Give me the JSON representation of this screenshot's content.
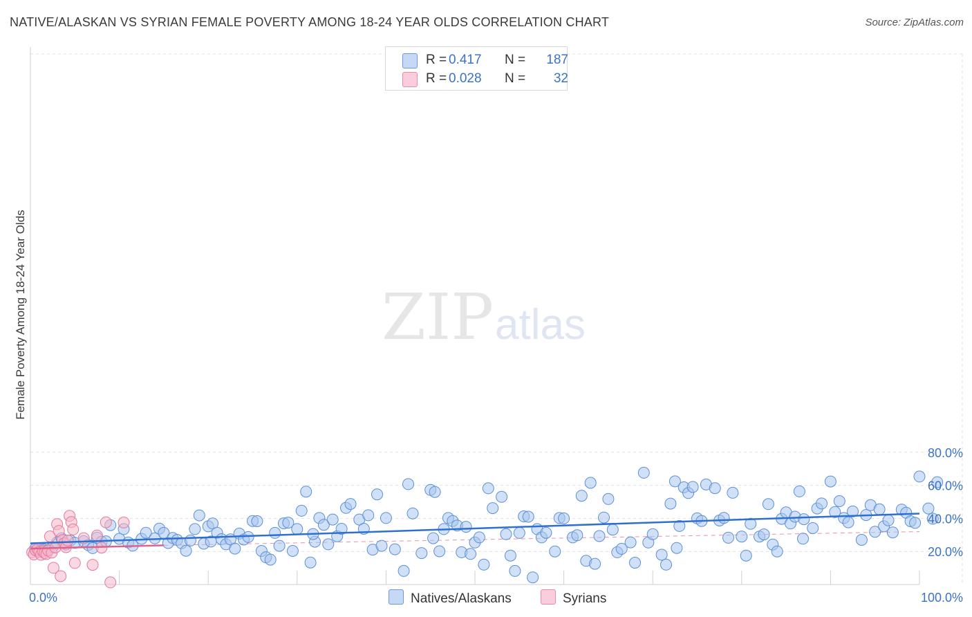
{
  "title": "NATIVE/ALASKAN VS SYRIAN FEMALE POVERTY AMONG 18-24 YEAR OLDS CORRELATION CHART",
  "source": "Source: ZipAtlas.com",
  "watermark": "ZIPatlas",
  "colors": {
    "blue_fill": "#a9c6ee",
    "blue_stroke": "#5b8fd6",
    "blue_line": "#2f6fd0",
    "pink_fill": "#f6b8cb",
    "pink_stroke": "#e47a9d",
    "pink_line": "#e0608c",
    "grid": "#e2e2e2",
    "tick_label": "#3a72c8"
  },
  "legend_top": {
    "rows": [
      {
        "r_label": "R =",
        "r_value": "0.417",
        "n_label": "N =",
        "n_value": "187"
      },
      {
        "r_label": "R =",
        "r_value": "0.028",
        "n_label": "N =",
        "n_value": "32"
      }
    ]
  },
  "legend_bottom": {
    "items": [
      {
        "label": "Natives/Alaskans"
      },
      {
        "label": "Syrians"
      }
    ]
  },
  "chart_data": {
    "type": "scatter",
    "title": "NATIVE/ALASKAN VS SYRIAN FEMALE POVERTY AMONG 18-24 YEAR OLDS CORRELATION CHART",
    "xlabel": "",
    "ylabel": "Female Poverty Among 18-24 Year Olds",
    "xlim": [
      0,
      100
    ],
    "ylim": [
      0,
      80
    ],
    "x_tick_labels": [
      "0.0%",
      "100.0%"
    ],
    "y_ticks": [
      20,
      40,
      60,
      80
    ],
    "y_tick_labels": [
      "20.0%",
      "40.0%",
      "60.0%",
      "80.0%"
    ],
    "grid": true,
    "legend_position": "top-center",
    "series": [
      {
        "name": "Natives/Alaskans",
        "R": 0.417,
        "N": 187,
        "trend": {
          "x": [
            0,
            100
          ],
          "y": [
            24.9,
            42.9
          ],
          "style": "solid"
        },
        "points": [
          [
            0.5,
            21.4
          ],
          [
            0.8,
            20.6
          ],
          [
            1.2,
            20.9
          ],
          [
            1.5,
            21.1
          ],
          [
            2.0,
            20.8
          ],
          [
            2.5,
            22.6
          ],
          [
            3.0,
            25.5
          ],
          [
            3.5,
            27.9
          ],
          [
            4.0,
            24.2
          ],
          [
            4.5,
            26.6
          ],
          [
            5.0,
            25.2
          ],
          [
            6.0,
            26.2
          ],
          [
            6.5,
            23.9
          ],
          [
            7.0,
            22.0
          ],
          [
            7.5,
            28.3
          ],
          [
            8.0,
            25.8
          ],
          [
            8.5,
            26.1
          ],
          [
            9.0,
            35.9
          ],
          [
            10.0,
            27.6
          ],
          [
            10.5,
            33.5
          ],
          [
            11.0,
            25.4
          ],
          [
            11.5,
            23.5
          ],
          [
            12.5,
            27.6
          ],
          [
            13.0,
            31.3
          ],
          [
            14.0,
            27.9
          ],
          [
            14.5,
            33.8
          ],
          [
            15.0,
            31.2
          ],
          [
            15.5,
            25.1
          ],
          [
            16.0,
            28.1
          ],
          [
            16.5,
            27.0
          ],
          [
            17.0,
            25.0
          ],
          [
            17.5,
            20.4
          ],
          [
            18.0,
            26.6
          ],
          [
            18.5,
            33.5
          ],
          [
            19.0,
            41.8
          ],
          [
            19.5,
            24.7
          ],
          [
            20.0,
            35.2
          ],
          [
            20.5,
            36.9
          ],
          [
            21.0,
            31.3
          ],
          [
            21.5,
            27.4
          ],
          [
            22.0,
            24.3
          ],
          [
            22.5,
            27.3
          ],
          [
            23.0,
            21.7
          ],
          [
            23.5,
            30.8
          ],
          [
            24.0,
            27.2
          ],
          [
            24.5,
            28.7
          ],
          [
            25.0,
            38.4
          ],
          [
            25.5,
            38.3
          ],
          [
            26.0,
            20.3
          ],
          [
            26.5,
            16.5
          ],
          [
            27.0,
            15.0
          ],
          [
            27.5,
            31.2
          ],
          [
            28.0,
            23.4
          ],
          [
            28.5,
            37.0
          ],
          [
            29.0,
            37.4
          ],
          [
            29.5,
            20.3
          ],
          [
            30.0,
            33.5
          ],
          [
            30.5,
            44.6
          ],
          [
            31.0,
            56.2
          ],
          [
            31.5,
            13.3
          ],
          [
            32.0,
            25.9
          ],
          [
            32.5,
            40.2
          ],
          [
            33.0,
            36.1
          ],
          [
            33.5,
            24.3
          ],
          [
            34.0,
            39.3
          ],
          [
            34.5,
            29.2
          ],
          [
            35.0,
            33.7
          ],
          [
            35.5,
            46.3
          ],
          [
            36.0,
            48.7
          ],
          [
            37.0,
            39.3
          ],
          [
            37.5,
            33.7
          ],
          [
            38.0,
            41.9
          ],
          [
            38.5,
            21.1
          ],
          [
            39.0,
            54.5
          ],
          [
            39.5,
            23.4
          ],
          [
            40.0,
            40.2
          ],
          [
            41.0,
            21.3
          ],
          [
            42.0,
            8.2
          ],
          [
            42.5,
            60.7
          ],
          [
            43.0,
            43.0
          ],
          [
            44.0,
            19.0
          ],
          [
            45.0,
            57.2
          ],
          [
            45.5,
            56.0
          ],
          [
            46.0,
            20.1
          ],
          [
            46.5,
            33.5
          ],
          [
            47.0,
            40.2
          ],
          [
            47.5,
            38.4
          ],
          [
            48.0,
            35.7
          ],
          [
            48.5,
            19.5
          ],
          [
            49.0,
            34.9
          ],
          [
            49.5,
            18.5
          ],
          [
            50.0,
            25.4
          ],
          [
            50.5,
            28.5
          ],
          [
            51.0,
            12.0
          ],
          [
            51.5,
            58.2
          ],
          [
            52.0,
            46.2
          ],
          [
            53.0,
            53.0
          ],
          [
            53.5,
            30.4
          ],
          [
            54.0,
            17.5
          ],
          [
            54.5,
            8.2
          ],
          [
            55.0,
            31.2
          ],
          [
            55.5,
            41.2
          ],
          [
            56.0,
            41.0
          ],
          [
            56.5,
            4.3
          ],
          [
            57.0,
            33.5
          ],
          [
            57.5,
            28.5
          ],
          [
            58.0,
            31.3
          ],
          [
            59.0,
            20.0
          ],
          [
            59.5,
            40.2
          ],
          [
            60.0,
            40.0
          ],
          [
            61.0,
            28.5
          ],
          [
            61.5,
            29.8
          ],
          [
            62.0,
            53.7
          ],
          [
            62.5,
            14.3
          ],
          [
            63.0,
            61.5
          ],
          [
            63.5,
            12.5
          ],
          [
            64.0,
            29.3
          ],
          [
            64.5,
            40.5
          ],
          [
            65.0,
            51.7
          ],
          [
            65.5,
            33.2
          ],
          [
            66.0,
            19.5
          ],
          [
            66.5,
            21.6
          ],
          [
            67.5,
            25.5
          ],
          [
            68.0,
            13.2
          ],
          [
            69.0,
            67.6
          ],
          [
            69.5,
            25.4
          ],
          [
            70.0,
            30.4
          ],
          [
            71.0,
            18.0
          ],
          [
            71.5,
            12.0
          ],
          [
            72.0,
            48.9
          ],
          [
            72.5,
            62.4
          ],
          [
            73.0,
            35.4
          ],
          [
            73.5,
            58.8
          ],
          [
            74.0,
            55.3
          ],
          [
            74.5,
            59.0
          ],
          [
            75.0,
            40.0
          ],
          [
            75.5,
            38.4
          ],
          [
            76.0,
            60.5
          ],
          [
            77.0,
            58.3
          ],
          [
            77.5,
            38.7
          ],
          [
            78.0,
            40.3
          ],
          [
            78.5,
            28.3
          ],
          [
            79.0,
            55.5
          ],
          [
            80.0,
            29.0
          ],
          [
            80.5,
            17.5
          ],
          [
            81.0,
            36.7
          ],
          [
            82.0,
            29.0
          ],
          [
            82.5,
            30.3
          ],
          [
            83.0,
            48.6
          ],
          [
            83.5,
            24.2
          ],
          [
            84.0,
            20.0
          ],
          [
            84.5,
            39.7
          ],
          [
            85.0,
            43.6
          ],
          [
            85.5,
            36.9
          ],
          [
            86.0,
            41.0
          ],
          [
            86.5,
            56.3
          ],
          [
            87.0,
            39.5
          ],
          [
            88.0,
            34.1
          ],
          [
            88.5,
            46.0
          ],
          [
            89.0,
            49.0
          ],
          [
            90.0,
            62.3
          ],
          [
            90.5,
            43.8
          ],
          [
            91.0,
            50.4
          ],
          [
            91.5,
            40.2
          ],
          [
            92.0,
            37.6
          ],
          [
            92.5,
            44.2
          ],
          [
            93.5,
            27.0
          ],
          [
            94.0,
            42.0
          ],
          [
            94.5,
            48.0
          ],
          [
            95.0,
            31.9
          ],
          [
            95.5,
            45.5
          ],
          [
            96.0,
            35.2
          ],
          [
            96.5,
            38.8
          ],
          [
            97.0,
            31.5
          ],
          [
            98.0,
            45.3
          ],
          [
            98.5,
            43.4
          ],
          [
            99.0,
            38.3
          ],
          [
            99.5,
            37.3
          ],
          [
            100.0,
            65.3
          ],
          [
            101.0,
            46.0
          ],
          [
            101.5,
            39.8
          ],
          [
            102.0,
            61.9
          ],
          [
            20.3,
            26.0
          ],
          [
            31.8,
            30.5
          ],
          [
            45.3,
            28.0
          ],
          [
            72.7,
            22.1
          ],
          [
            86.9,
            27.7
          ]
        ]
      },
      {
        "name": "Syrians",
        "R": 0.028,
        "N": 32,
        "trend": {
          "x": [
            0,
            15
          ],
          "y": [
            21.7,
            23.7
          ],
          "style": "solid",
          "extended": {
            "x": [
              15,
              100
            ],
            "y": [
              23.7,
              32.0
            ],
            "style": "dashed"
          }
        },
        "points": [
          [
            0.2,
            19.5
          ],
          [
            0.4,
            18.2
          ],
          [
            0.6,
            20.6
          ],
          [
            0.8,
            21.5
          ],
          [
            1.0,
            19.8
          ],
          [
            1.2,
            18.0
          ],
          [
            1.4,
            20.1
          ],
          [
            1.6,
            19.0
          ],
          [
            1.8,
            18.4
          ],
          [
            2.0,
            20.5
          ],
          [
            2.2,
            29.1
          ],
          [
            2.4,
            19.3
          ],
          [
            2.6,
            10.1
          ],
          [
            2.8,
            22.4
          ],
          [
            3.0,
            36.5
          ],
          [
            3.2,
            32.4
          ],
          [
            3.4,
            5.0
          ],
          [
            3.6,
            26.9
          ],
          [
            3.8,
            24.9
          ],
          [
            4.0,
            22.6
          ],
          [
            4.2,
            26.6
          ],
          [
            4.4,
            41.5
          ],
          [
            4.6,
            37.8
          ],
          [
            4.8,
            33.3
          ],
          [
            5.0,
            13.0
          ],
          [
            6.0,
            28.0
          ],
          [
            7.0,
            11.9
          ],
          [
            7.5,
            29.6
          ],
          [
            8.0,
            22.3
          ],
          [
            8.5,
            37.6
          ],
          [
            9.0,
            1.3
          ],
          [
            10.5,
            37.5
          ]
        ]
      }
    ]
  }
}
